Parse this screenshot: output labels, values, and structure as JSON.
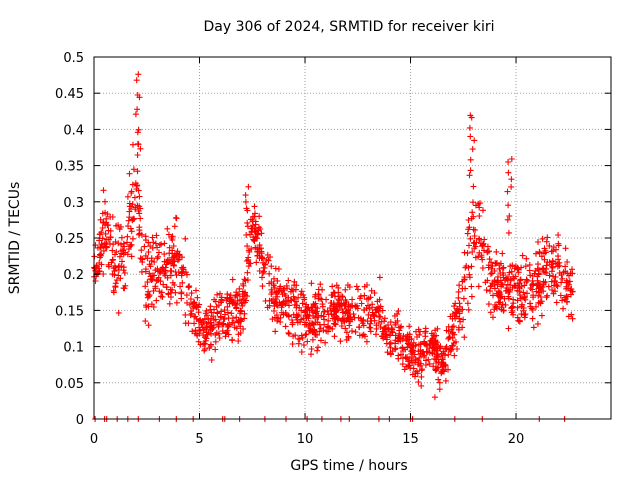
{
  "chart_data": {
    "type": "scatter",
    "title": "Day 306 of 2024, SRMTID for receiver kiri",
    "xlabel": "GPS time / hours",
    "ylabel": "SRMTID / TECUs",
    "xlim": [
      0,
      24.5
    ],
    "ylim": [
      0,
      0.5
    ],
    "x_ticks": [
      0,
      5,
      10,
      15,
      20
    ],
    "x_tick_labels": [
      "0",
      "5",
      "10",
      "15",
      "20"
    ],
    "y_ticks": [
      0,
      0.05,
      0.1,
      0.15,
      0.2,
      0.25,
      0.3,
      0.35,
      0.4,
      0.45,
      0.5
    ],
    "y_tick_labels": [
      "0",
      "0.05",
      "0.1",
      "0.15",
      "0.2",
      "0.25",
      "0.3",
      "0.35",
      "0.4",
      "0.45",
      "0.5"
    ],
    "grid": true,
    "marker": "+",
    "color": "#ff0000",
    "series_envelope": {
      "hours": [
        0,
        0.5,
        1,
        1.5,
        2,
        2.5,
        3,
        3.5,
        4,
        4.5,
        5,
        5.5,
        6,
        6.5,
        7,
        7.5,
        8,
        8.5,
        9,
        9.5,
        10,
        10.5,
        11,
        11.5,
        12,
        12.5,
        13,
        13.5,
        14,
        14.5,
        15,
        15.5,
        16,
        16.5,
        17,
        17.5,
        18,
        18.5,
        19,
        19.5,
        20,
        20.5,
        21,
        21.5,
        22,
        22.5
      ],
      "srmtid_typical": [
        0.2,
        0.27,
        0.2,
        0.24,
        0.33,
        0.19,
        0.2,
        0.21,
        0.22,
        0.17,
        0.13,
        0.12,
        0.14,
        0.15,
        0.14,
        0.27,
        0.21,
        0.17,
        0.16,
        0.15,
        0.14,
        0.14,
        0.13,
        0.15,
        0.15,
        0.14,
        0.15,
        0.15,
        0.11,
        0.12,
        0.09,
        0.09,
        0.11,
        0.07,
        0.12,
        0.16,
        0.27,
        0.22,
        0.19,
        0.18,
        0.18,
        0.18,
        0.19,
        0.2,
        0.21,
        0.18
      ],
      "srmtid_spread": [
        0.03,
        0.07,
        0.07,
        0.08,
        0.1,
        0.08,
        0.06,
        0.06,
        0.07,
        0.06,
        0.04,
        0.05,
        0.05,
        0.05,
        0.05,
        0.05,
        0.06,
        0.06,
        0.05,
        0.06,
        0.06,
        0.06,
        0.05,
        0.05,
        0.05,
        0.05,
        0.05,
        0.05,
        0.04,
        0.05,
        0.04,
        0.05,
        0.05,
        0.04,
        0.05,
        0.07,
        0.12,
        0.07,
        0.06,
        0.06,
        0.06,
        0.06,
        0.07,
        0.06,
        0.06,
        0.05
      ],
      "peaks": [
        {
          "hour": 2.1,
          "value": 0.48
        },
        {
          "hour": 7.3,
          "value": 0.335
        },
        {
          "hour": 17.9,
          "value": 0.43
        },
        {
          "hour": 19.7,
          "value": 0.37
        }
      ],
      "minimum": {
        "hour": 16.3,
        "value": 0.03
      }
    },
    "zero_markers_hours": [
      0.05,
      0.5,
      0.6,
      1.1,
      1.6,
      2.1,
      3.1,
      3.9,
      4.7,
      6.1,
      6.2,
      6.9,
      8.1,
      9.1,
      10.1,
      10.8,
      11.7,
      12.1,
      13.5,
      14.0,
      15.0,
      15.1,
      17.1,
      18.4,
      21.1,
      22.3
    ]
  }
}
